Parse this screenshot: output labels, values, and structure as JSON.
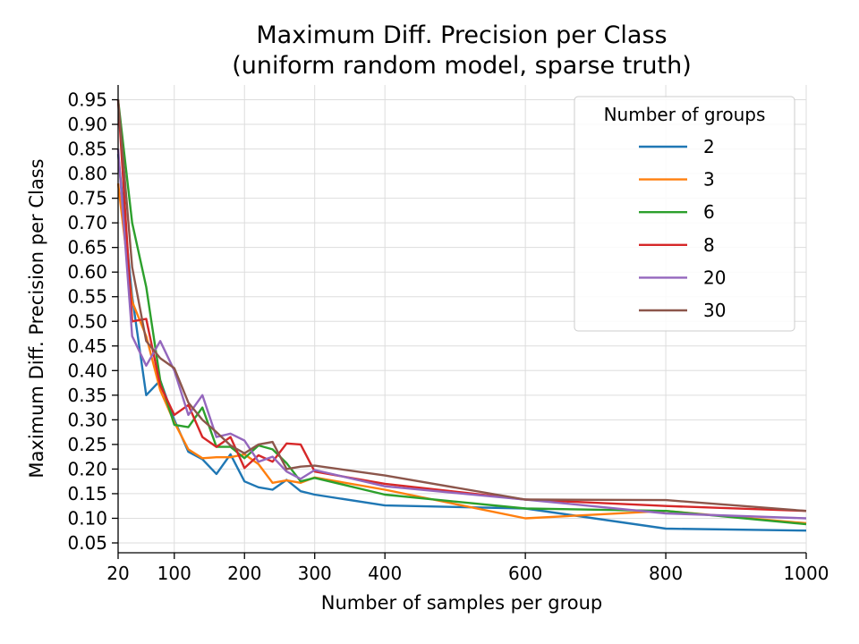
{
  "chart_data": {
    "type": "line",
    "title": "Maximum Diff. Precision per Class",
    "subtitle": "(uniform random model, sparse truth)",
    "xlabel": "Number of samples per group",
    "ylabel": "Maximum Diff. Precision per Class",
    "xlim": [
      20,
      1000
    ],
    "ylim": [
      0.03,
      0.98
    ],
    "xticks": [
      20,
      100,
      200,
      300,
      400,
      600,
      800,
      1000
    ],
    "yticks": [
      0.05,
      0.1,
      0.15,
      0.2,
      0.25,
      0.3,
      0.35,
      0.4,
      0.45,
      0.5,
      0.55,
      0.6,
      0.65,
      0.7,
      0.75,
      0.8,
      0.85,
      0.9,
      0.95
    ],
    "ytick_labels": [
      "0.05",
      "0.10",
      "0.15",
      "0.20",
      "0.25",
      "0.30",
      "0.35",
      "0.40",
      "0.45",
      "0.50",
      "0.55",
      "0.60",
      "0.65",
      "0.70",
      "0.75",
      "0.80",
      "0.85",
      "0.90",
      "0.95"
    ],
    "grid": true,
    "legend": {
      "title": "Number of groups",
      "placement": "top-right"
    },
    "x": [
      20,
      40,
      60,
      80,
      100,
      120,
      140,
      160,
      180,
      200,
      220,
      240,
      260,
      280,
      300,
      400,
      600,
      800,
      1000
    ],
    "series": [
      {
        "name": "2",
        "color": "#1f77b4",
        "values": [
          0.84,
          0.55,
          0.35,
          0.38,
          0.3,
          0.235,
          0.22,
          0.19,
          0.23,
          0.175,
          0.163,
          0.158,
          0.178,
          0.155,
          0.148,
          0.126,
          0.12,
          0.079,
          0.075
        ]
      },
      {
        "name": "3",
        "color": "#ff7f0e",
        "values": [
          0.78,
          0.54,
          0.47,
          0.36,
          0.295,
          0.24,
          0.222,
          0.224,
          0.224,
          0.23,
          0.21,
          0.172,
          0.177,
          0.172,
          0.183,
          0.158,
          0.1,
          0.115,
          0.09
        ]
      },
      {
        "name": "6",
        "color": "#2ca02c",
        "values": [
          0.95,
          0.7,
          0.57,
          0.38,
          0.29,
          0.285,
          0.325,
          0.245,
          0.245,
          0.222,
          0.248,
          0.24,
          0.212,
          0.175,
          0.182,
          0.148,
          0.12,
          0.115,
          0.088
        ]
      },
      {
        "name": "8",
        "color": "#d62728",
        "values": [
          0.95,
          0.5,
          0.505,
          0.37,
          0.31,
          0.33,
          0.265,
          0.245,
          0.265,
          0.202,
          0.228,
          0.215,
          0.252,
          0.25,
          0.195,
          0.17,
          0.138,
          0.125,
          0.115
        ]
      },
      {
        "name": "20",
        "color": "#9467bd",
        "values": [
          0.85,
          0.47,
          0.41,
          0.46,
          0.4,
          0.31,
          0.35,
          0.265,
          0.272,
          0.258,
          0.215,
          0.225,
          0.195,
          0.18,
          0.198,
          0.165,
          0.138,
          0.11,
          0.1
        ]
      },
      {
        "name": "30",
        "color": "#8c564b",
        "values": [
          0.95,
          0.61,
          0.46,
          0.425,
          0.405,
          0.335,
          0.3,
          0.275,
          0.248,
          0.232,
          0.25,
          0.255,
          0.2,
          0.205,
          0.207,
          0.187,
          0.138,
          0.137,
          0.115
        ]
      }
    ]
  }
}
